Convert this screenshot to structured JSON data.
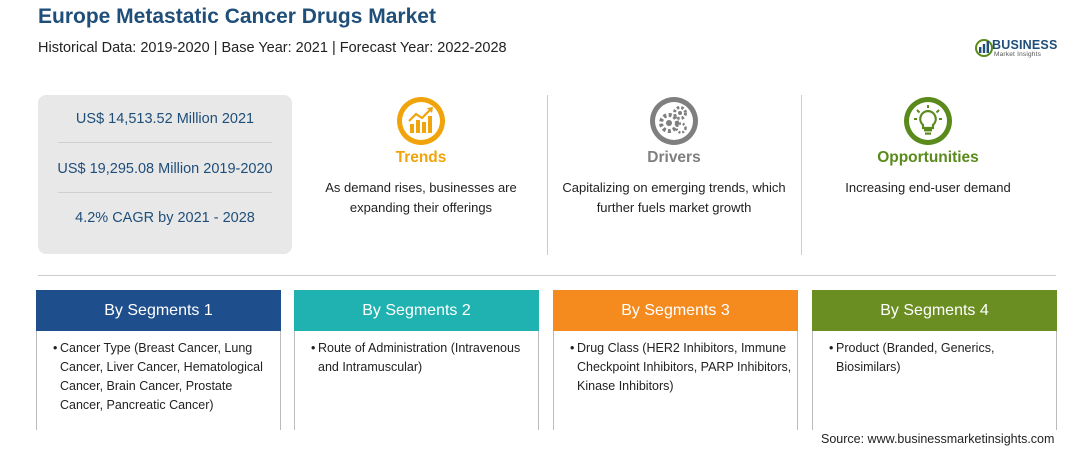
{
  "header": {
    "title": "Europe Metastatic Cancer Drugs Market",
    "subtitle": "Historical Data: 2019-2020 | Base Year: 2021 | Forecast Year: 2022-2028"
  },
  "logo": {
    "word": "BUSINESS",
    "sub": "Market Insights"
  },
  "stats": [
    "US$ 14,513.52 Million 2021",
    "US$ 19,295.08 Million 2019-2020",
    "4.2% CAGR by 2021 - 2028"
  ],
  "features": [
    {
      "icon": "trend-chart-icon",
      "title": "Trends",
      "color": "#f0a30a",
      "text": "As demand rises, businesses are expanding their offerings"
    },
    {
      "icon": "gears-icon",
      "title": "Drivers",
      "color": "#7f7f7f",
      "text": "Capitalizing on emerging trends, which further fuels market growth"
    },
    {
      "icon": "lightbulb-icon",
      "title": "Opportunities",
      "color": "#5a8a1c",
      "text": "Increasing end-user demand"
    }
  ],
  "segments": [
    {
      "title": "By Segments 1",
      "color": "#1f4e8c",
      "text": "Cancer Type (Breast Cancer, Lung Cancer, Liver Cancer, Hematological Cancer, Brain Cancer, Prostate Cancer, Pancreatic Cancer)"
    },
    {
      "title": "By Segments 2",
      "color": "#1fb2b0",
      "text": "Route of Administration (Intravenous and Intramuscular)"
    },
    {
      "title": "By Segments 3",
      "color": "#f58b1f",
      "text": "Drug Class (HER2 Inhibitors, Immune Checkpoint Inhibitors, PARP Inhibitors, Kinase Inhibitors)"
    },
    {
      "title": "By Segments 4",
      "color": "#6b8e23",
      "text": "Product (Branded, Generics, Biosimilars)"
    }
  ],
  "bullet": "•",
  "source": "Source: www.businessmarketinsights.com"
}
